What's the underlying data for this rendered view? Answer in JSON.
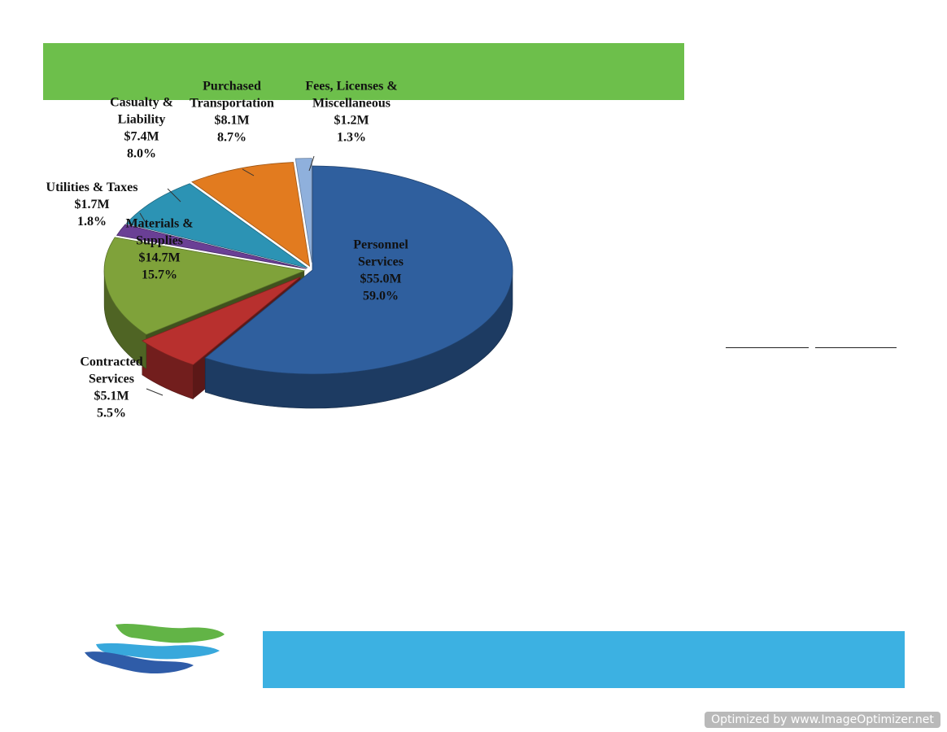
{
  "colors": {
    "title_band": "#6dbf4b",
    "footer_band": "#3cb1e2",
    "badge_bg": "#b9b9b9"
  },
  "chart_data": {
    "type": "pie",
    "title": "",
    "categories": [
      "Personnel Services",
      "Contracted Services",
      "Materials & Supplies",
      "Utilities & Taxes",
      "Casualty & Liability",
      "Purchased Transportation",
      "Fees, Licenses & Miscellaneous"
    ],
    "amounts": [
      "$55.0M",
      "$5.1M",
      "$14.7M",
      "$1.7M",
      "$7.4M",
      "$8.1M",
      "$1.2M"
    ],
    "values": [
      59.0,
      5.5,
      15.7,
      1.8,
      8.0,
      8.7,
      1.3
    ],
    "percent_labels": [
      "59.0%",
      "5.5%",
      "15.7%",
      "1.8%",
      "8.0%",
      "8.7%",
      "1.3%"
    ],
    "label_lines": [
      [
        "Personnel",
        "Services"
      ],
      [
        "Contracted",
        "Services"
      ],
      [
        "Materials &",
        "Supplies"
      ],
      [
        "Utilities & Taxes"
      ],
      [
        "Casualty &",
        "Liability"
      ],
      [
        "Purchased",
        "Transportation"
      ],
      [
        "Fees, Licenses &",
        "Miscellaneous"
      ]
    ],
    "colors": [
      "#2f5f9e",
      "#b8302e",
      "#7fa23a",
      "#6a3f95",
      "#2c93b4",
      "#e27b1f",
      "#8fb0dc"
    ],
    "three_d": true,
    "exploded": true,
    "legend": "none"
  },
  "footer": {
    "watermark": "Optimized by www.ImageOptimizer.net"
  }
}
